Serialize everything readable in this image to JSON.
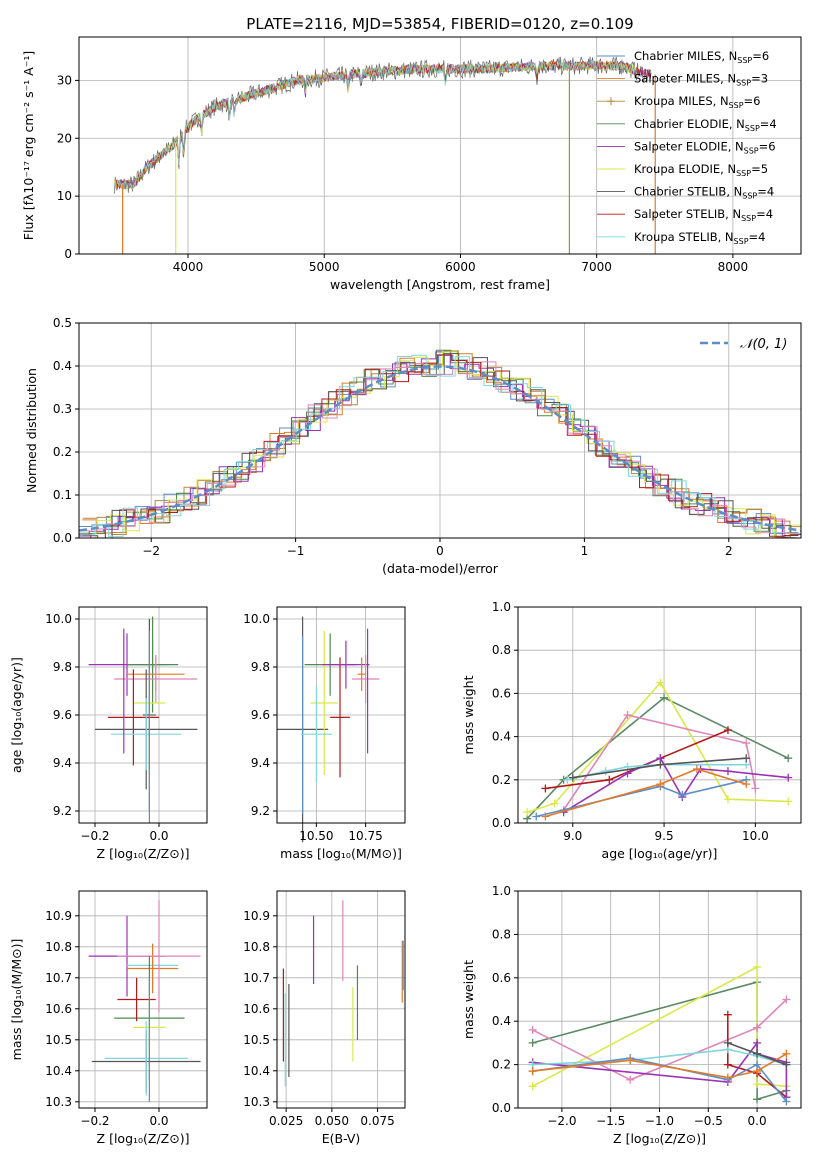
{
  "figure": {
    "title": "PLATE=2116, MJD=53854, FIBERID=0120, z=0.109"
  },
  "palette": {
    "chabrier_miles": "#5b8ec9",
    "salpeter_miles": "#e27a2a",
    "kroupa_miles": "#b08a3e",
    "chabrier_elodie": "#4f8b4f",
    "salpeter_elodie": "#9b32b8",
    "kroupa_elodie": "#d9e94a",
    "chabrier_stelib": "#555555",
    "salpeter_stelib": "#b31b1b",
    "kroupa_stelib": "#7fd6de",
    "pink": "#e085b8",
    "dark_green": "#5a8a64"
  },
  "chart_data": [
    {
      "id": "spectrum",
      "type": "line",
      "xlabel": "wavelength [Angstrom, rest frame]",
      "ylabel": "Flux [fλ10⁻¹⁷ erg cm⁻² s⁻¹ A⁻¹]",
      "xlim": [
        3200,
        8500
      ],
      "ylim": [
        0,
        37.5
      ],
      "xticks": [
        4000,
        5000,
        6000,
        7000,
        8000
      ],
      "yticks": [
        0,
        10,
        20,
        30
      ],
      "legend_position": "top-right",
      "legend": [
        {
          "label": "Chabrier MILES, N",
          "sub": "SSP",
          "tail": "=6",
          "color_key": "chabrier_miles",
          "marker": "none"
        },
        {
          "label": "Salpeter MILES, N",
          "sub": "SSP",
          "tail": "=3",
          "color_key": "salpeter_miles",
          "marker": "none"
        },
        {
          "label": "Kroupa MILES, N",
          "sub": "SSP",
          "tail": "=6",
          "color_key": "kroupa_miles",
          "marker": "plus"
        },
        {
          "label": "Chabrier ELODIE, N",
          "sub": "SSP",
          "tail": "=4",
          "color_key": "chabrier_elodie",
          "marker": "none"
        },
        {
          "label": "Salpeter ELODIE, N",
          "sub": "SSP",
          "tail": "=6",
          "color_key": "salpeter_elodie",
          "marker": "none"
        },
        {
          "label": "Kroupa ELODIE, N",
          "sub": "SSP",
          "tail": "=5",
          "color_key": "kroupa_elodie",
          "marker": "none"
        },
        {
          "label": "Chabrier STELIB, N",
          "sub": "SSP",
          "tail": "=4",
          "color_key": "chabrier_stelib",
          "marker": "none"
        },
        {
          "label": "Salpeter STELIB, N",
          "sub": "SSP",
          "tail": "=4",
          "color_key": "salpeter_stelib",
          "marker": "none"
        },
        {
          "label": "Kroupa STELIB, N",
          "sub": "SSP",
          "tail": "=4",
          "color_key": "kroupa_stelib",
          "marker": "none"
        }
      ],
      "continuum_points": [
        [
          3450,
          12
        ],
        [
          3600,
          12
        ],
        [
          3700,
          15
        ],
        [
          3800,
          17
        ],
        [
          3900,
          19
        ],
        [
          4000,
          22
        ],
        [
          4100,
          24
        ],
        [
          4200,
          25.5
        ],
        [
          4400,
          27
        ],
        [
          4600,
          28.5
        ],
        [
          4800,
          30
        ],
        [
          5000,
          30.5
        ],
        [
          5200,
          31
        ],
        [
          5400,
          31.5
        ],
        [
          5600,
          31.8
        ],
        [
          5800,
          32
        ],
        [
          6000,
          32
        ],
        [
          6200,
          32
        ],
        [
          6400,
          32.3
        ],
        [
          6600,
          32.5
        ],
        [
          6800,
          32.5
        ],
        [
          7000,
          32.6
        ],
        [
          7200,
          32.5
        ],
        [
          7300,
          31.5
        ],
        [
          7400,
          31
        ]
      ],
      "drops": [
        [
          3520,
          "salpeter_miles"
        ],
        [
          3910,
          "kroupa_elodie"
        ],
        [
          6800,
          "kroupa_miles"
        ],
        [
          7430,
          "salpeter_miles"
        ]
      ]
    },
    {
      "id": "residuals",
      "type": "histogram",
      "xlabel": "(data-model)/error",
      "ylabel": "Normed distribution",
      "xlim": [
        -2.5,
        2.5
      ],
      "ylim": [
        0,
        0.5
      ],
      "xticks": [
        -2,
        -1,
        0,
        1,
        2
      ],
      "yticks": [
        0.0,
        0.1,
        0.2,
        0.3,
        0.4,
        0.5
      ],
      "legend_position": "top-right",
      "reference_curve": {
        "label": "𝒩(0, 1)",
        "mean": 0,
        "sigma": 1,
        "color": "#5b8ec9"
      },
      "bin_width": 0.1
    },
    {
      "id": "age_vs_Z",
      "type": "errorbar",
      "xlabel": "Z [log₁₀(Z/Z⊙)]",
      "ylabel": "age  [log₁₀(age/yr)]",
      "xlim": [
        -0.25,
        0.15
      ],
      "ylim": [
        9.15,
        10.05
      ],
      "xticks": [
        -0.2,
        0.0
      ],
      "yticks": [
        9.2,
        9.4,
        9.6,
        9.8,
        10.0
      ],
      "points": [
        {
          "x": -0.1,
          "y": 9.81,
          "xerr": 0.12,
          "yerr": 0.13,
          "c": "salpeter_elodie"
        },
        {
          "x": -0.02,
          "y": 9.81,
          "xerr": 0.06,
          "yerr": 0.1,
          "c": "kroupa_stelib"
        },
        {
          "x": -0.02,
          "y": 9.81,
          "xerr": 0.08,
          "yerr": 0.2,
          "c": "chabrier_elodie"
        },
        {
          "x": -0.01,
          "y": 9.77,
          "xerr": 0.09,
          "yerr": 0.07,
          "c": "salpeter_miles"
        },
        {
          "x": -0.01,
          "y": 9.75,
          "xerr": 0.13,
          "yerr": 0.1,
          "c": "pink"
        },
        {
          "x": -0.03,
          "y": 9.65,
          "xerr": 0.05,
          "yerr": 0.3,
          "c": "kroupa_elodie"
        },
        {
          "x": -0.08,
          "y": 9.59,
          "xerr": 0.08,
          "yerr": 0.2,
          "c": "salpeter_stelib"
        },
        {
          "x": -0.03,
          "y": 9.6,
          "xerr": 0.02,
          "yerr": 0.4,
          "c": "chabrier_stelib"
        },
        {
          "x": -0.04,
          "y": 9.54,
          "xerr": 0.16,
          "yerr": 0.25,
          "c": "chabrier_stelib"
        },
        {
          "x": -0.04,
          "y": 9.52,
          "xerr": 0.11,
          "yerr": 0.15,
          "c": "kroupa_stelib"
        },
        {
          "x": -0.03,
          "y": 9.55,
          "xerr": 0.0,
          "yerr": 0.4,
          "c": "chabrier_miles"
        },
        {
          "x": -0.11,
          "y": 9.7,
          "xerr": 0.0,
          "yerr": 0.26,
          "c": "salpeter_elodie"
        }
      ]
    },
    {
      "id": "age_vs_mass",
      "type": "errorbar",
      "xlabel": "mass [log₁₀(M/M⊙)]",
      "ylabel": "",
      "xlim": [
        10.3,
        10.95
      ],
      "ylim": [
        9.15,
        10.05
      ],
      "xticks": [
        10.5,
        10.75
      ],
      "yticks": [
        9.2,
        9.4,
        9.6,
        9.8,
        10.0
      ],
      "points": [
        {
          "x": 10.43,
          "y": 9.54,
          "xerr": 0.13,
          "yerr": 0.47,
          "c": "chabrier_stelib"
        },
        {
          "x": 10.43,
          "y": 9.56,
          "xerr": 0.0,
          "yerr": 0.37,
          "c": "chabrier_miles"
        },
        {
          "x": 10.57,
          "y": 9.81,
          "xerr": 0.13,
          "yerr": 0.13,
          "c": "chabrier_elodie"
        },
        {
          "x": 10.54,
          "y": 9.65,
          "xerr": 0.07,
          "yerr": 0.3,
          "c": "kroupa_elodie"
        },
        {
          "x": 10.62,
          "y": 9.59,
          "xerr": 0.05,
          "yerr": 0.25,
          "c": "salpeter_stelib"
        },
        {
          "x": 10.5,
          "y": 9.52,
          "xerr": 0.08,
          "yerr": 0.2,
          "c": "kroupa_stelib"
        },
        {
          "x": 10.65,
          "y": 9.81,
          "xerr": 0.12,
          "yerr": 0.1,
          "c": "salpeter_elodie"
        },
        {
          "x": 10.73,
          "y": 9.77,
          "xerr": 0.02,
          "yerr": 0.07,
          "c": "salpeter_miles"
        },
        {
          "x": 10.75,
          "y": 9.75,
          "xerr": 0.07,
          "yerr": 0.1,
          "c": "pink"
        },
        {
          "x": 10.76,
          "y": 9.7,
          "xerr": 0.0,
          "yerr": 0.26,
          "c": "salpeter_elodie"
        }
      ]
    },
    {
      "id": "weight_vs_age",
      "type": "line",
      "xlabel": "age  [log₁₀(age/yr)]",
      "ylabel": "mass weight",
      "xlim": [
        8.7,
        10.25
      ],
      "ylim": [
        0,
        1
      ],
      "xticks": [
        9.0,
        9.5,
        10.0
      ],
      "yticks": [
        0.0,
        0.2,
        0.4,
        0.6,
        0.8,
        1.0
      ],
      "series": [
        {
          "c": "dark_green",
          "x": [
            8.75,
            8.95,
            9.5,
            10.18
          ],
          "y": [
            0.02,
            0.2,
            0.58,
            0.3
          ]
        },
        {
          "c": "kroupa_elodie",
          "x": [
            8.75,
            8.9,
            9.48,
            9.85,
            10.18
          ],
          "y": [
            0.05,
            0.09,
            0.65,
            0.11,
            0.1
          ]
        },
        {
          "c": "pink",
          "x": [
            8.95,
            9.3,
            9.95,
            10.0
          ],
          "y": [
            0.06,
            0.5,
            0.37,
            0.16
          ]
        },
        {
          "c": "salpeter_stelib",
          "x": [
            8.85,
            9.2,
            9.48,
            9.85
          ],
          "y": [
            0.16,
            0.2,
            0.3,
            0.43
          ]
        },
        {
          "c": "salpeter_elodie",
          "x": [
            8.95,
            9.3,
            9.48,
            9.6,
            9.7,
            9.85,
            10.18
          ],
          "y": [
            0.05,
            0.23,
            0.3,
            0.12,
            0.25,
            0.24,
            0.21
          ]
        },
        {
          "c": "kroupa_stelib",
          "x": [
            8.97,
            9.18,
            9.3,
            9.48,
            9.95
          ],
          "y": [
            0.2,
            0.24,
            0.26,
            0.27,
            0.27
          ]
        },
        {
          "c": "chabrier_miles",
          "x": [
            8.8,
            9.48,
            9.6,
            9.95
          ],
          "y": [
            0.03,
            0.17,
            0.13,
            0.2
          ]
        },
        {
          "c": "salpeter_miles",
          "x": [
            8.85,
            9.48,
            9.68,
            9.95
          ],
          "y": [
            0.03,
            0.18,
            0.25,
            0.18
          ]
        },
        {
          "c": "chabrier_stelib",
          "x": [
            9.0,
            9.48,
            9.95
          ],
          "y": [
            0.21,
            0.27,
            0.3
          ]
        }
      ]
    },
    {
      "id": "mass_vs_Z",
      "type": "errorbar",
      "xlabel": "Z [log₁₀(Z/Z⊙)]",
      "ylabel": "mass [log₁₀(M/M⊙)]",
      "xlim": [
        -0.25,
        0.15
      ],
      "ylim": [
        10.28,
        10.98
      ],
      "xticks": [
        -0.2,
        0.0
      ],
      "yticks": [
        10.3,
        10.4,
        10.5,
        10.6,
        10.7,
        10.8,
        10.9
      ],
      "points": [
        {
          "x": -0.1,
          "y": 10.77,
          "xerr": 0.12,
          "yerr": 0.13,
          "c": "salpeter_elodie"
        },
        {
          "x": -0.02,
          "y": 10.74,
          "xerr": 0.08,
          "yerr": 0.07,
          "c": "kroupa_stelib"
        },
        {
          "x": -0.02,
          "y": 10.73,
          "xerr": 0.08,
          "yerr": 0.08,
          "c": "salpeter_miles"
        },
        {
          "x": 0.0,
          "y": 10.77,
          "xerr": 0.13,
          "yerr": 0.18,
          "c": "pink"
        },
        {
          "x": -0.03,
          "y": 10.57,
          "xerr": 0.11,
          "yerr": 0.2,
          "c": "chabrier_elodie"
        },
        {
          "x": -0.03,
          "y": 10.54,
          "xerr": 0.05,
          "yerr": 0.12,
          "c": "kroupa_elodie"
        },
        {
          "x": -0.07,
          "y": 10.63,
          "xerr": 0.06,
          "yerr": 0.07,
          "c": "salpeter_stelib"
        },
        {
          "x": -0.04,
          "y": 10.43,
          "xerr": 0.17,
          "yerr": 0.1,
          "c": "chabrier_stelib"
        },
        {
          "x": -0.04,
          "y": 10.44,
          "xerr": 0.13,
          "yerr": 0.12,
          "c": "kroupa_stelib"
        },
        {
          "x": -0.03,
          "y": 10.5,
          "xerr": 0.0,
          "yerr": 0.2,
          "c": "chabrier_miles"
        }
      ]
    },
    {
      "id": "mass_vs_ebv",
      "type": "errorbar",
      "xlabel": "E(B-V)",
      "ylabel": "",
      "xlim": [
        0.02,
        0.09
      ],
      "ylim": [
        10.28,
        10.98
      ],
      "xticks": [
        0.025,
        0.05,
        0.075
      ],
      "yticks": [
        10.3,
        10.4,
        10.5,
        10.6,
        10.7,
        10.8,
        10.9
      ],
      "points": [
        {
          "x": 0.0235,
          "y": 10.58,
          "xerr": 0,
          "yerr": 0.15,
          "c": "salpeter_stelib"
        },
        {
          "x": 0.0245,
          "y": 10.5,
          "xerr": 0,
          "yerr": 0.15,
          "c": "kroupa_stelib"
        },
        {
          "x": 0.0265,
          "y": 10.53,
          "xerr": 0,
          "yerr": 0.15,
          "c": "chabrier_stelib"
        },
        {
          "x": 0.04,
          "y": 10.79,
          "xerr": 0,
          "yerr": 0.11,
          "c": "salpeter_elodie"
        },
        {
          "x": 0.056,
          "y": 10.82,
          "xerr": 0,
          "yerr": 0.13,
          "c": "pink"
        },
        {
          "x": 0.0615,
          "y": 10.55,
          "xerr": 0,
          "yerr": 0.12,
          "c": "kroupa_elodie"
        },
        {
          "x": 0.064,
          "y": 10.62,
          "xerr": 0,
          "yerr": 0.12,
          "c": "chabrier_elodie"
        },
        {
          "x": 0.0885,
          "y": 10.72,
          "xerr": 0,
          "yerr": 0.1,
          "c": "salpeter_miles"
        },
        {
          "x": 0.089,
          "y": 10.74,
          "xerr": 0,
          "yerr": 0.08,
          "c": "chabrier_miles"
        }
      ]
    },
    {
      "id": "weight_vs_Z",
      "type": "line",
      "xlabel": "Z [log₁₀(Z/Z⊙)]",
      "ylabel": "mass weight",
      "xlim": [
        -2.45,
        0.45
      ],
      "ylim": [
        0,
        1
      ],
      "xticks": [
        -2.0,
        -1.5,
        -1.0,
        -0.5,
        0.0
      ],
      "yticks": [
        0.0,
        0.2,
        0.4,
        0.6,
        0.8,
        1.0
      ],
      "series": [
        {
          "c": "dark_green",
          "x": [
            -2.3,
            0.0,
            0.0,
            0.3
          ],
          "y": [
            0.3,
            0.58,
            0.04,
            0.08
          ]
        },
        {
          "c": "kroupa_elodie",
          "x": [
            -2.3,
            0.0,
            0.0,
            0.3
          ],
          "y": [
            0.1,
            0.65,
            0.11,
            0.1
          ]
        },
        {
          "c": "pink",
          "x": [
            -2.3,
            -1.3,
            0.0,
            0.3
          ],
          "y": [
            0.36,
            0.13,
            0.37,
            0.5
          ]
        },
        {
          "c": "salpeter_stelib",
          "x": [
            -0.3,
            -0.3,
            0.0,
            0.3
          ],
          "y": [
            0.43,
            0.2,
            0.16,
            0.05
          ]
        },
        {
          "c": "salpeter_elodie",
          "x": [
            -2.3,
            -0.3,
            0.0,
            0.0,
            0.3,
            0.3
          ],
          "y": [
            0.21,
            0.12,
            0.3,
            0.25,
            0.21,
            0.05
          ]
        },
        {
          "c": "kroupa_stelib",
          "x": [
            -2.3,
            -1.3,
            -0.3,
            0.0,
            0.3
          ],
          "y": [
            0.2,
            0.22,
            0.27,
            0.24,
            0.2
          ]
        },
        {
          "c": "chabrier_miles",
          "x": [
            -2.3,
            -1.3,
            -0.3,
            0.0,
            0.3
          ],
          "y": [
            0.17,
            0.23,
            0.13,
            0.2,
            0.03
          ]
        },
        {
          "c": "salpeter_miles",
          "x": [
            -2.3,
            -1.3,
            -0.3,
            0.0,
            0.3
          ],
          "y": [
            0.17,
            0.22,
            0.14,
            0.17,
            0.25
          ]
        },
        {
          "c": "chabrier_stelib",
          "x": [
            -0.3,
            0.0,
            0.3
          ],
          "y": [
            0.3,
            0.25,
            0.2
          ]
        }
      ]
    }
  ]
}
